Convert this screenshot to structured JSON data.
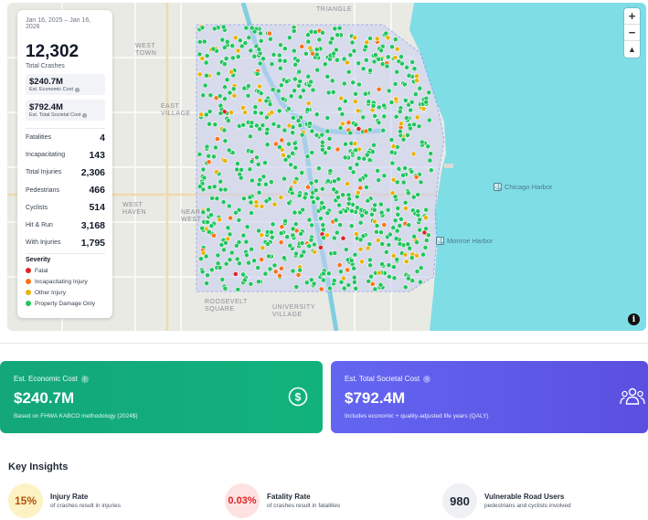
{
  "map": {
    "neighborhood_labels": [
      "WEST TOWN",
      "EAST VILLAGE",
      "WEST HAVEN",
      "NEAR WEST",
      "ROOSEVELT SQUARE",
      "UNIVERSITY VILLAGE",
      "TRIANGLE"
    ],
    "harbor_labels": [
      "Chicago Harbor",
      "Monroe Harbor"
    ],
    "controls": {
      "zoom_in": "+",
      "zoom_out": "−",
      "compass": "▲"
    },
    "info_icon": "i"
  },
  "stats": {
    "date_range": "Jan 16, 2025 – Jan 16, 2026",
    "total_crashes": "12,302",
    "total_crashes_label": "Total Crashes",
    "economic_cost": "$240.7M",
    "economic_cost_label": "Est. Economic Cost",
    "societal_cost": "$792.4M",
    "societal_cost_label": "Est. Total Societal Cost",
    "rows": [
      {
        "label": "Fatalities",
        "value": "4"
      },
      {
        "label": "Incapacitating",
        "value": "143"
      },
      {
        "label": "Total Injuries",
        "value": "2,306"
      },
      {
        "label": "Pedestrians",
        "value": "466"
      },
      {
        "label": "Cyclists",
        "value": "514"
      },
      {
        "label": "Hit & Run",
        "value": "3,168"
      },
      {
        "label": "With Injuries",
        "value": "1,795"
      }
    ],
    "legend_title": "Severity",
    "legend": [
      {
        "label": "Fatal",
        "color": "#dc2626"
      },
      {
        "label": "Incapacitating Injury",
        "color": "#f97316"
      },
      {
        "label": "Other Injury",
        "color": "#eab308"
      },
      {
        "label": "Property Damage Only",
        "color": "#22c55e"
      }
    ]
  },
  "cards": {
    "economic": {
      "title": "Est. Economic Cost",
      "value": "$240.7M",
      "subtitle": "Based on FHWA KABCO methodology (2024$)",
      "icon": "dollar-circle-icon",
      "color": "#12ab7b"
    },
    "societal": {
      "title": "Est. Total Societal Cost",
      "value": "$792.4M",
      "subtitle": "Includes economic + quality-adjusted life years (QALY)",
      "icon": "people-group-icon",
      "color": "#5e5ae8"
    }
  },
  "insights": {
    "title": "Key Insights",
    "items": [
      {
        "badge": "15%",
        "title": "Injury Rate",
        "subtitle": "of crashes result in injuries"
      },
      {
        "badge": "0.03%",
        "title": "Fatality Rate",
        "subtitle": "of crashes result in fatalities"
      },
      {
        "badge": "980",
        "title": "Vulnerable Road Users",
        "subtitle": "pedestrians and cyclists involved"
      }
    ]
  }
}
